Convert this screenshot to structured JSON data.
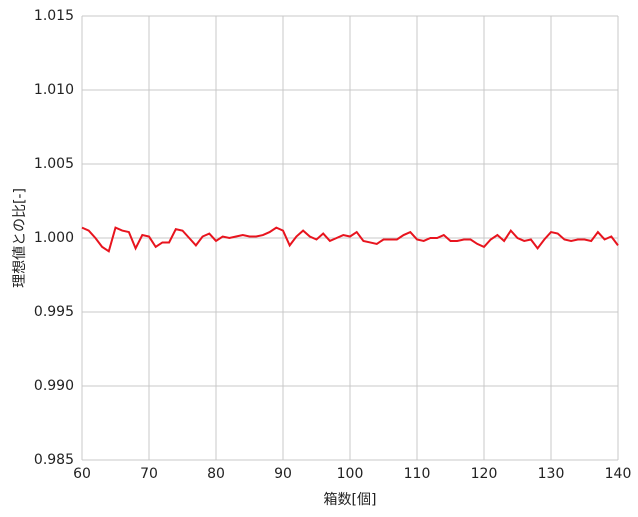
{
  "chart_data": {
    "type": "line",
    "x_label": "箱数[個]",
    "y_label": "理想値との比[-]",
    "x": [
      60,
      61,
      62,
      63,
      64,
      65,
      66,
      67,
      68,
      69,
      70,
      71,
      72,
      73,
      74,
      75,
      76,
      77,
      78,
      79,
      80,
      81,
      82,
      83,
      84,
      85,
      86,
      87,
      88,
      89,
      90,
      91,
      92,
      93,
      94,
      95,
      96,
      97,
      98,
      99,
      100,
      101,
      102,
      103,
      104,
      105,
      106,
      107,
      108,
      109,
      110,
      111,
      112,
      113,
      114,
      115,
      116,
      117,
      118,
      119,
      120,
      121,
      122,
      123,
      124,
      125,
      126,
      127,
      128,
      129,
      130,
      131,
      132,
      133,
      134,
      135,
      136,
      137,
      138,
      139,
      140
    ],
    "series": [
      {
        "name": "比",
        "color": "#e8141e",
        "values": [
          1.0007,
          1.0005,
          1.0,
          0.9994,
          0.9991,
          1.0007,
          1.0005,
          1.0004,
          0.9993,
          1.0002,
          1.0001,
          0.9994,
          0.9997,
          0.9997,
          1.0006,
          1.0005,
          1.0,
          0.9995,
          1.0001,
          1.0003,
          0.9998,
          1.0001,
          1.0,
          1.0001,
          1.0002,
          1.0001,
          1.0001,
          1.0002,
          1.0004,
          1.0007,
          1.0005,
          0.9995,
          1.0001,
          1.0005,
          1.0001,
          0.9999,
          1.0003,
          0.9998,
          1.0,
          1.0002,
          1.0001,
          1.0004,
          0.9998,
          0.9997,
          0.9996,
          0.9999,
          0.9999,
          0.9999,
          1.0002,
          1.0004,
          0.9999,
          0.9998,
          1.0,
          1.0,
          1.0002,
          0.9998,
          0.9998,
          0.9999,
          0.9999,
          0.9996,
          0.9994,
          0.9999,
          1.0002,
          0.9998,
          1.0005,
          1.0,
          0.9998,
          0.9999,
          0.9993,
          0.9999,
          1.0004,
          1.0003,
          0.9999,
          0.9998,
          0.9999,
          0.9999,
          0.9998,
          1.0004,
          0.9999,
          1.0001,
          0.9995
        ]
      }
    ],
    "xlim": [
      60,
      140
    ],
    "xticks": [
      60,
      70,
      80,
      90,
      100,
      110,
      120,
      130,
      140
    ],
    "ylim": [
      0.985,
      1.015
    ],
    "yticks": [
      0.985,
      {
        "value": 0.99,
        "label": "0.990"
      },
      0.995,
      {
        "value": 1.0,
        "label": "1.000"
      },
      1.005,
      {
        "value": 1.01,
        "label": "1.010"
      },
      1.015
    ],
    "grid": true
  }
}
